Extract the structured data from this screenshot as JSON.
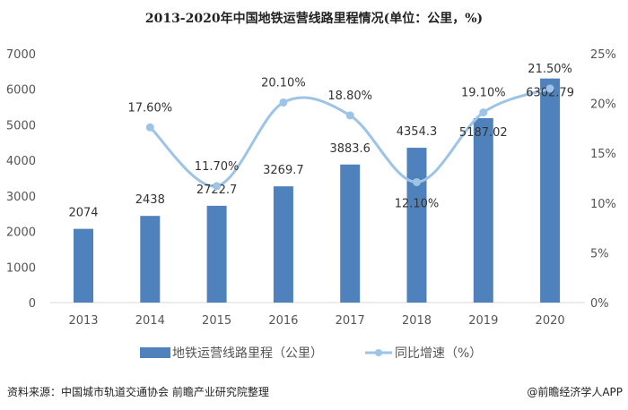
{
  "chart_data": {
    "type": "bar",
    "title": "2013-2020年中国地铁运营线路里程情况(单位：公里，%)",
    "categories": [
      "2013",
      "2014",
      "2015",
      "2016",
      "2017",
      "2018",
      "2019",
      "2020"
    ],
    "series": [
      {
        "name": "地铁运营线路里程（公里）",
        "type": "bar",
        "axis": "left",
        "color": "#4f81bd",
        "values": [
          2074,
          2438,
          2722.7,
          3269.7,
          3883.6,
          4354.3,
          5187.02,
          6302.79
        ],
        "labels": [
          "2074",
          "2438",
          "2722.7",
          "3269.7",
          "3883.6",
          "4354.3",
          "5187.02",
          "6302.79"
        ]
      },
      {
        "name": "同比增速（%）",
        "type": "line",
        "smooth": true,
        "axis": "right",
        "color": "#9dc3e6",
        "values": [
          null,
          17.6,
          11.7,
          20.1,
          18.8,
          12.1,
          19.1,
          21.5
        ],
        "labels": [
          null,
          "17.60%",
          "11.70%",
          "20.10%",
          "18.80%",
          "12.10%",
          "19.10%",
          "21.50%"
        ]
      }
    ],
    "y_left": {
      "range": [
        0,
        7000
      ],
      "ticks": [
        "0",
        "1000",
        "2000",
        "3000",
        "4000",
        "5000",
        "6000",
        "7000"
      ]
    },
    "y_right": {
      "range": [
        0,
        25
      ],
      "ticks": [
        "0%",
        "5%",
        "10%",
        "15%",
        "20%",
        "25%"
      ]
    },
    "grid": false,
    "legend_placement": "bottom"
  },
  "footer": {
    "source": "资料来源：中国城市轨道交通协会 前瞻产业研究院整理",
    "credit": "@前瞻经济学人APP"
  }
}
